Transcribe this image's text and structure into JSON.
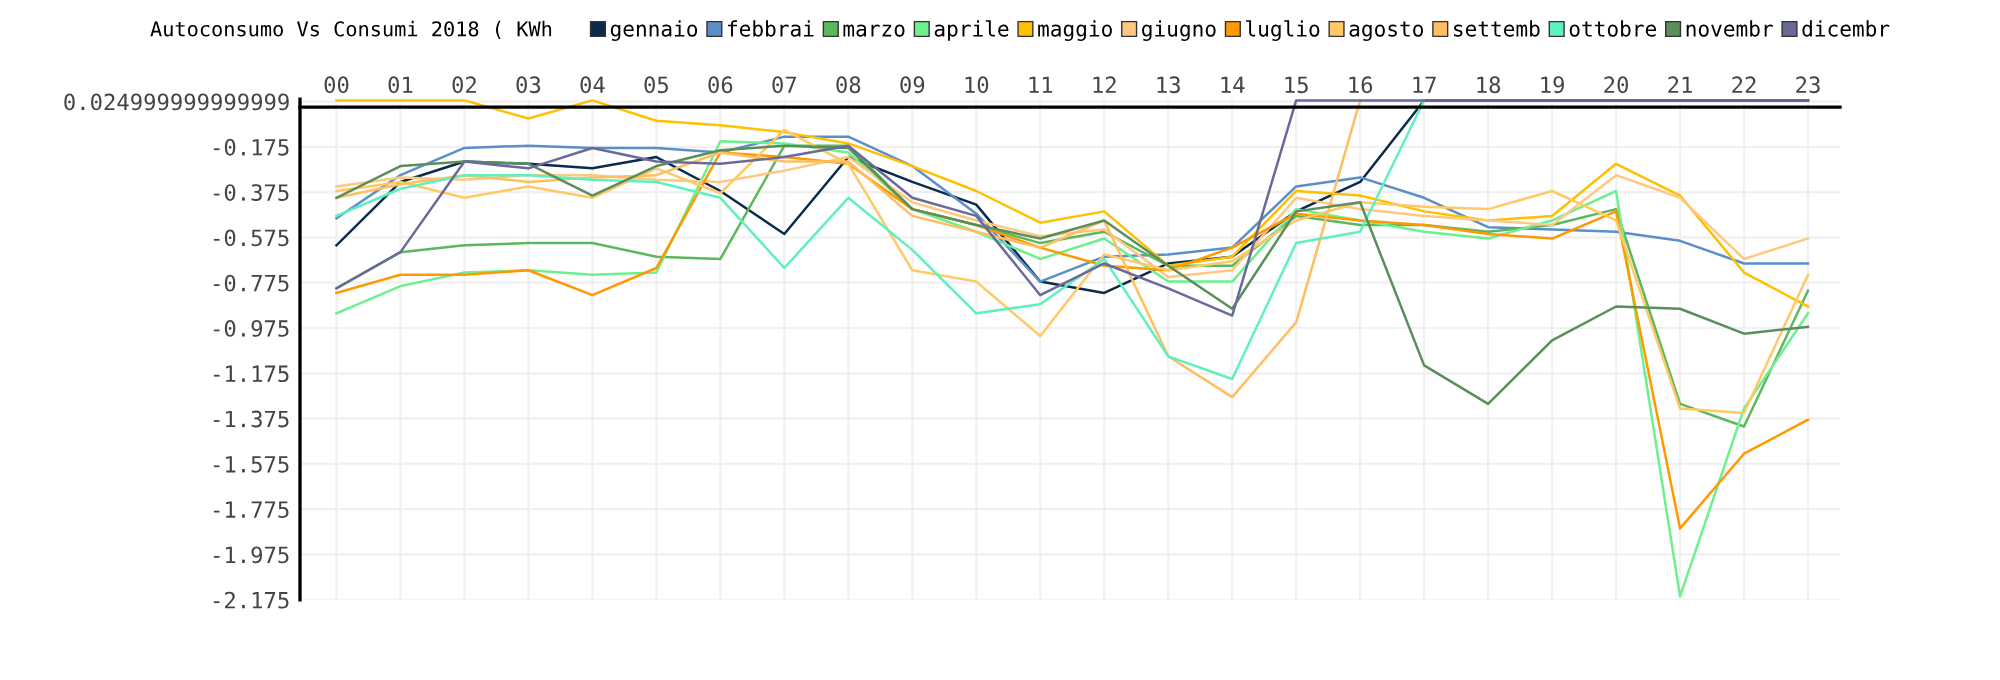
{
  "chart_data": {
    "type": "line",
    "title": "Autoconsumo Vs Consumi 2018 ( KWh",
    "categories": [
      "00",
      "01",
      "02",
      "03",
      "04",
      "05",
      "06",
      "07",
      "08",
      "09",
      "10",
      "11",
      "12",
      "13",
      "14",
      "15",
      "16",
      "17",
      "18",
      "19",
      "20",
      "21",
      "22",
      "23"
    ],
    "ylim": [
      -2.175,
      0.035
    ],
    "yticks": [
      {
        "value": 0.025,
        "label": "0.024999999999999"
      },
      -0.175,
      -0.375,
      -0.575,
      -0.775,
      -0.975,
      -1.175,
      -1.375,
      -1.575,
      -1.775,
      -1.975,
      -2.175
    ],
    "grid": true,
    "legend": "top",
    "marker": "none",
    "line_style": "solid",
    "series": [
      {
        "name": "gennaio",
        "color": "#0b2b4c",
        "values": [
          -0.61,
          -0.33,
          -0.24,
          -0.25,
          -0.27,
          -0.22,
          -0.37,
          -0.56,
          -0.22,
          -0.33,
          -0.43,
          -0.77,
          -0.82,
          -0.69,
          -0.66,
          -0.46,
          -0.33,
          0.03,
          0.03,
          0.03,
          0.03,
          0.03,
          0.03,
          0.03
        ]
      },
      {
        "name": "febbrai",
        "color": "#5b8fc9",
        "values": [
          -0.49,
          -0.3,
          -0.18,
          -0.17,
          -0.18,
          -0.18,
          -0.2,
          -0.13,
          -0.13,
          -0.26,
          -0.47,
          -0.77,
          -0.66,
          -0.65,
          -0.62,
          -0.35,
          -0.31,
          -0.4,
          -0.53,
          -0.54,
          -0.55,
          -0.59,
          -0.69,
          -0.69
        ]
      },
      {
        "name": "marzo",
        "color": "#5cb85c",
        "values": [
          -0.8,
          -0.64,
          -0.61,
          -0.6,
          -0.6,
          -0.66,
          -0.67,
          -0.17,
          -0.17,
          -0.45,
          -0.52,
          -0.6,
          -0.55,
          -0.7,
          -0.7,
          -0.48,
          -0.52,
          -0.52,
          -0.55,
          -0.52,
          -0.45,
          -1.31,
          -1.41,
          -0.81
        ]
      },
      {
        "name": "aprile",
        "color": "#6ef08e",
        "values": [
          -0.91,
          -0.79,
          -0.73,
          -0.72,
          -0.74,
          -0.73,
          -0.15,
          -0.16,
          -0.2,
          -0.45,
          -0.55,
          -0.67,
          -0.58,
          -0.77,
          -0.77,
          -0.45,
          -0.5,
          -0.55,
          -0.58,
          -0.5,
          -0.37,
          -2.16,
          -1.33,
          -0.91
        ]
      },
      {
        "name": "maggio",
        "color": "#ffc000",
        "values": [
          0.03,
          0.03,
          0.03,
          -0.05,
          0.03,
          -0.06,
          -0.08,
          -0.11,
          -0.16,
          -0.26,
          -0.37,
          -0.51,
          -0.46,
          -0.7,
          -0.66,
          -0.37,
          -0.39,
          -0.46,
          -0.5,
          -0.48,
          -0.25,
          -0.39,
          -0.73,
          -0.88
        ]
      },
      {
        "name": "giugno",
        "color": "#ffc880",
        "values": [
          -0.35,
          -0.31,
          -0.32,
          -0.3,
          -0.3,
          -0.32,
          -0.33,
          -0.28,
          -0.22,
          -0.42,
          -0.5,
          -0.57,
          -0.54,
          -0.75,
          -0.72,
          -0.4,
          -0.45,
          -0.48,
          -0.5,
          -0.52,
          -0.3,
          -0.4,
          -0.67,
          -0.58
        ]
      },
      {
        "name": "luglio",
        "color": "#ff9900",
        "values": [
          -0.82,
          -0.74,
          -0.74,
          -0.72,
          -0.83,
          -0.71,
          -0.2,
          -0.22,
          -0.25,
          -0.45,
          -0.52,
          -0.62,
          -0.7,
          -0.72,
          -0.62,
          -0.47,
          -0.5,
          -0.52,
          -0.56,
          -0.58,
          -0.46,
          -1.86,
          -1.53,
          -1.38
        ]
      },
      {
        "name": "agosto",
        "color": "#ffc966",
        "values": [
          -0.37,
          -0.33,
          -0.4,
          -0.35,
          -0.4,
          -0.27,
          -0.38,
          -0.1,
          -0.25,
          -0.72,
          -0.77,
          -1.01,
          -0.65,
          -0.72,
          -0.68,
          -0.5,
          -0.42,
          -0.44,
          -0.45,
          -0.37,
          -0.5,
          -1.33,
          -1.35,
          -0.74
        ]
      },
      {
        "name": "settemb",
        "color": "#ffbf60",
        "values": [
          -0.4,
          -0.34,
          -0.3,
          -0.33,
          -0.31,
          -0.3,
          -0.2,
          -0.24,
          -0.24,
          -0.48,
          -0.55,
          -0.62,
          -0.5,
          -1.1,
          -1.28,
          -0.95,
          0.03,
          null,
          null,
          null,
          null,
          null,
          null,
          null
        ]
      },
      {
        "name": "ottobre",
        "color": "#5ef0c0",
        "values": [
          -0.48,
          -0.36,
          -0.3,
          -0.3,
          -0.32,
          -0.33,
          -0.4,
          -0.71,
          -0.4,
          -0.63,
          -0.91,
          -0.87,
          -0.67,
          -1.1,
          -1.2,
          -0.6,
          -0.55,
          0.03,
          null,
          null,
          null,
          null,
          null,
          null
        ]
      },
      {
        "name": "novembr",
        "color": "#5a8f5a",
        "values": [
          -0.4,
          -0.26,
          -0.24,
          -0.25,
          -0.39,
          -0.26,
          -0.19,
          -0.17,
          -0.18,
          -0.45,
          -0.52,
          -0.58,
          -0.5,
          -0.7,
          -0.89,
          -0.46,
          -0.42,
          -1.14,
          -1.31,
          -1.03,
          -0.88,
          -0.89,
          -1.0,
          -0.97
        ]
      },
      {
        "name": "dicembr",
        "color": "#6a6a9a",
        "values": [
          -0.8,
          -0.64,
          -0.24,
          -0.27,
          -0.18,
          -0.24,
          -0.25,
          -0.22,
          -0.17,
          -0.4,
          -0.48,
          -0.83,
          -0.69,
          -0.8,
          -0.92,
          0.03,
          0.03,
          0.03,
          0.03,
          0.03,
          0.03,
          0.03,
          0.03,
          0.03
        ]
      }
    ]
  }
}
